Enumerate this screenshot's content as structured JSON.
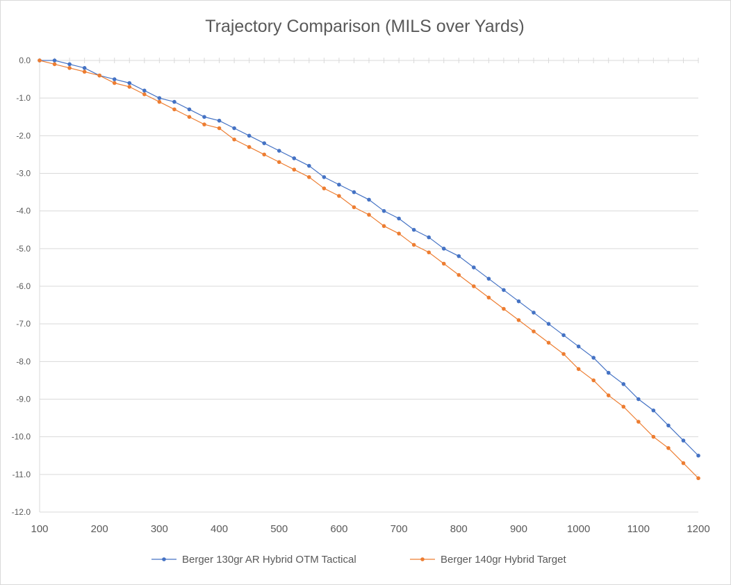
{
  "chart_data": {
    "type": "line",
    "title": "Trajectory Comparison (MILS over Yards)",
    "xlabel": "",
    "ylabel": "",
    "xlim": [
      100,
      1200
    ],
    "ylim": [
      -12,
      0
    ],
    "x_ticks": [
      "100",
      "200",
      "300",
      "400",
      "500",
      "600",
      "700",
      "800",
      "900",
      "1000",
      "1100",
      "1200"
    ],
    "y_ticks": [
      "0.0",
      "-1.0",
      "-2.0",
      "-3.0",
      "-4.0",
      "-5.0",
      "-6.0",
      "-7.0",
      "-8.0",
      "-9.0",
      "-10.0",
      "-11.0",
      "-12.0"
    ],
    "grid": true,
    "legend_position": "bottom",
    "x": [
      100,
      125,
      150,
      175,
      200,
      225,
      250,
      275,
      300,
      325,
      350,
      375,
      400,
      425,
      450,
      475,
      500,
      525,
      550,
      575,
      600,
      625,
      650,
      675,
      700,
      725,
      750,
      775,
      800,
      825,
      850,
      875,
      900,
      925,
      950,
      975,
      1000,
      1025,
      1050,
      1075,
      1100,
      1125,
      1150,
      1175,
      1200
    ],
    "series": [
      {
        "name": "Berger 130gr AR Hybrid OTM Tactical",
        "color": "#4472c4",
        "values": [
          0.0,
          0.0,
          -0.1,
          -0.2,
          -0.4,
          -0.5,
          -0.6,
          -0.8,
          -1.0,
          -1.1,
          -1.3,
          -1.5,
          -1.6,
          -1.8,
          -2.0,
          -2.2,
          -2.4,
          -2.6,
          -2.8,
          -3.1,
          -3.3,
          -3.5,
          -3.7,
          -4.0,
          -4.2,
          -4.5,
          -4.7,
          -5.0,
          -5.2,
          -5.5,
          -5.8,
          -6.1,
          -6.4,
          -6.7,
          -7.0,
          -7.3,
          -7.6,
          -7.9,
          -8.3,
          -8.6,
          -9.0,
          -9.3,
          -9.7,
          -10.1,
          -10.5
        ]
      },
      {
        "name": "Berger 140gr Hybrid Target",
        "color": "#ed7d31",
        "values": [
          0.0,
          -0.1,
          -0.2,
          -0.3,
          -0.4,
          -0.6,
          -0.7,
          -0.9,
          -1.1,
          -1.3,
          -1.5,
          -1.7,
          -1.8,
          -2.1,
          -2.3,
          -2.5,
          -2.7,
          -2.9,
          -3.1,
          -3.4,
          -3.6,
          -3.9,
          -4.1,
          -4.4,
          -4.6,
          -4.9,
          -5.1,
          -5.4,
          -5.7,
          -6.0,
          -6.3,
          -6.6,
          -6.9,
          -7.2,
          -7.5,
          -7.8,
          -8.2,
          -8.5,
          -8.9,
          -9.2,
          -9.6,
          -10.0,
          -10.3,
          -10.7,
          -11.1
        ]
      }
    ]
  }
}
